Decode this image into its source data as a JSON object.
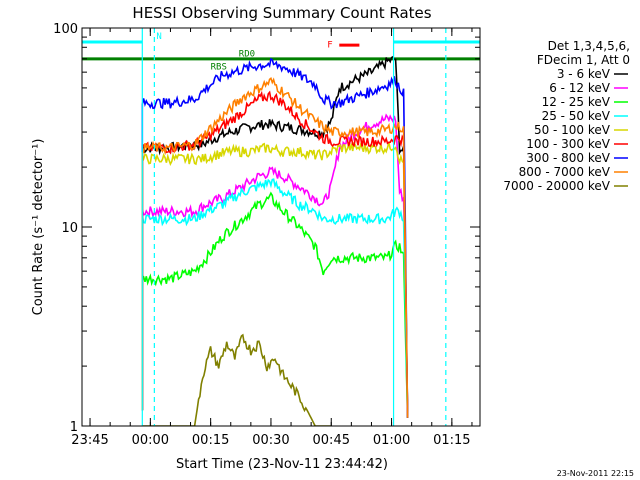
{
  "chart_data": {
    "type": "line",
    "title": "HESSI Observing Summary Count Rates",
    "xlabel": "Start Time (23-Nov-11 23:44:42)",
    "ylabel": "Count Rate (s⁻¹ detector⁻¹)",
    "ylog": true,
    "ylim": [
      1,
      100
    ],
    "xlim_minutes": [
      -2,
      97
    ],
    "x_ticks": [
      {
        "label": "23:45",
        "minute": 0
      },
      {
        "label": "00:00",
        "minute": 15
      },
      {
        "label": "00:15",
        "minute": 30
      },
      {
        "label": "00:30",
        "minute": 45
      },
      {
        "label": "00:45",
        "minute": 60
      },
      {
        "label": "01:00",
        "minute": 75
      },
      {
        "label": "01:15",
        "minute": 90
      }
    ],
    "y_ticks": [
      {
        "label": "1",
        "value": 1
      },
      {
        "label": "10",
        "value": 10
      },
      {
        "label": "100",
        "value": 100
      }
    ],
    "grid": false,
    "legend_position": "right",
    "legend_header": [
      "Det 1,3,4,5,6,",
      "FDecim 1, Att 0"
    ],
    "series": [
      {
        "name": "3 - 6 keV",
        "color": "#000000",
        "x": [
          13,
          13,
          14,
          20,
          26,
          28,
          31,
          35,
          40,
          44,
          48,
          52,
          56,
          58,
          60,
          62,
          66,
          70,
          74,
          76,
          77,
          78,
          79
        ],
        "values": [
          1.2,
          25,
          25,
          25,
          26,
          26,
          28,
          30,
          32,
          33,
          32,
          31,
          30,
          30,
          34,
          50,
          55,
          60,
          68,
          70,
          25,
          24,
          1.1
        ]
      },
      {
        "name": "6 - 12 keV",
        "color": "#ff00ff",
        "x": [
          13,
          13,
          14,
          20,
          26,
          29,
          33,
          38,
          42,
          45,
          48,
          52,
          56,
          58,
          60,
          62,
          66,
          70,
          74,
          76,
          77,
          78,
          79
        ],
        "values": [
          1.2,
          12,
          12,
          12,
          12,
          13,
          14,
          16,
          18,
          19,
          18,
          16,
          14,
          13,
          16,
          25,
          30,
          33,
          35,
          35,
          15,
          14,
          1.1
        ]
      },
      {
        "name": "12 - 25 keV",
        "color": "#00ff00",
        "x": [
          13,
          13,
          14,
          20,
          26,
          29,
          33,
          38,
          42,
          45,
          48,
          52,
          56,
          58,
          60,
          62,
          66,
          70,
          74,
          76,
          77,
          78,
          79
        ],
        "values": [
          1.2,
          5.5,
          5.5,
          5.5,
          6,
          7,
          9,
          11,
          13,
          14,
          12,
          10,
          8,
          6,
          7,
          7,
          7,
          7,
          7,
          8,
          8,
          7,
          1.1
        ]
      },
      {
        "name": "25 - 50 keV",
        "color": "#00ffff",
        "x": [
          13,
          13,
          14,
          20,
          26,
          29,
          33,
          38,
          42,
          45,
          48,
          52,
          56,
          58,
          60,
          62,
          66,
          70,
          74,
          76,
          77,
          78,
          79
        ],
        "values": [
          1.2,
          11,
          11,
          11,
          11,
          12,
          13,
          15,
          16,
          17,
          15,
          13,
          12,
          11,
          11,
          11,
          11,
          11,
          11,
          12,
          12,
          11,
          1.1
        ]
      },
      {
        "name": "50 - 100 keV",
        "color": "#d7d700",
        "x": [
          13,
          13,
          14,
          20,
          26,
          28,
          31,
          35,
          40,
          44,
          48,
          52,
          56,
          58,
          60,
          62,
          66,
          70,
          74,
          76,
          77,
          78,
          79
        ],
        "values": [
          1.2,
          22,
          22,
          22,
          22,
          22,
          23,
          24,
          24,
          25,
          24,
          24,
          23,
          23,
          24,
          25,
          25,
          25,
          25,
          26,
          22,
          21,
          1.1
        ]
      },
      {
        "name": "100 - 300 keV",
        "color": "#ff0000",
        "x": [
          13,
          13,
          14,
          20,
          26,
          29,
          33,
          38,
          42,
          45,
          48,
          52,
          56,
          58,
          60,
          62,
          66,
          70,
          74,
          76,
          77,
          78,
          79
        ],
        "values": [
          1.2,
          25,
          25,
          25,
          26,
          28,
          32,
          38,
          44,
          46,
          42,
          35,
          30,
          28,
          27,
          27,
          27,
          27,
          27,
          28,
          28,
          27,
          1.1
        ]
      },
      {
        "name": "300 - 800 keV",
        "color": "#0000ff",
        "x": [
          13,
          13,
          14,
          20,
          26,
          29,
          33,
          38,
          42,
          45,
          48,
          52,
          56,
          58,
          60,
          62,
          66,
          70,
          74,
          76,
          77,
          78,
          79
        ],
        "values": [
          1.2,
          42,
          42,
          42,
          44,
          50,
          58,
          62,
          65,
          66,
          64,
          58,
          52,
          44,
          42,
          42,
          45,
          48,
          52,
          55,
          50,
          48,
          1.1
        ]
      },
      {
        "name": "800 - 7000 keV",
        "color": "#ff8000",
        "x": [
          13,
          13,
          14,
          20,
          26,
          29,
          33,
          38,
          42,
          45,
          48,
          52,
          56,
          58,
          60,
          62,
          66,
          70,
          74,
          76,
          77,
          78,
          79
        ],
        "values": [
          1.2,
          25,
          25,
          25,
          26,
          30,
          36,
          45,
          50,
          54,
          48,
          40,
          34,
          32,
          30,
          30,
          30,
          30,
          31,
          32,
          32,
          31,
          1.1
        ]
      },
      {
        "name": "7000 - 20000 keV",
        "color": "#808000",
        "x": [
          13,
          20,
          26,
          28,
          30,
          32,
          34,
          36,
          38,
          40,
          42,
          44,
          46,
          48,
          50,
          52,
          54,
          56,
          58,
          60
        ],
        "values": [
          1,
          1,
          1,
          1.8,
          2.4,
          2.0,
          2.6,
          2.2,
          2.8,
          2.4,
          2.6,
          2.0,
          2.2,
          1.8,
          1.6,
          1.4,
          1.2,
          1,
          1,
          1
        ]
      }
    ],
    "flags": [
      {
        "name": "SAA/Night top",
        "color": "#00ffff",
        "label": "N",
        "segments": [
          [
            -2,
            13
          ],
          [
            75.5,
            97
          ]
        ],
        "level": 85
      },
      {
        "name": "RD0",
        "color": "#008000",
        "label": "RD0",
        "segments": [
          [
            -2,
            97
          ]
        ],
        "level": 70
      },
      {
        "name": "F",
        "color": "#ff0000",
        "label": "F",
        "segments": [
          [
            62,
            67
          ]
        ],
        "level": 82
      }
    ],
    "flag_labels": [
      "N",
      "RD0",
      "RBS",
      "F"
    ],
    "vertical_lines": [
      {
        "minute": 13,
        "style": "solid",
        "color": "#00ffff"
      },
      {
        "minute": 16,
        "style": "dashed",
        "color": "#00ffff"
      },
      {
        "minute": 75.5,
        "style": "solid",
        "color": "#00ffff"
      },
      {
        "minute": 88.5,
        "style": "dashed",
        "color": "#00ffff"
      }
    ],
    "footer_timestamp": "23-Nov-2011 22:15"
  }
}
